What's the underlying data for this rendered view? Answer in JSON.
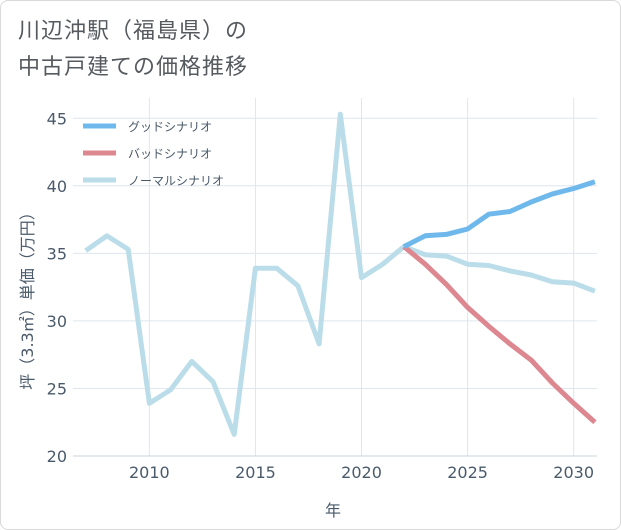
{
  "title_lines": [
    "川辺沖駅（福島県）の",
    "中古戸建ての価格推移"
  ],
  "chart_data": {
    "type": "line",
    "title": "川辺沖駅（福島県）の中古戸建ての価格推移",
    "xlabel": "年",
    "ylabel": "坪（3.3㎡）単価（万円）",
    "xlim": [
      2006.4,
      2031.1
    ],
    "ylim": [
      20,
      46.5
    ],
    "xticks": [
      2010,
      2015,
      2020,
      2025,
      2030
    ],
    "yticks": [
      20,
      25,
      30,
      35,
      40,
      45
    ],
    "grid": true,
    "legend_position": "top-left",
    "series": [
      {
        "name": "グッドシナリオ",
        "color": "#6fb8ec",
        "x": [
          2022,
          2023,
          2024,
          2025,
          2026,
          2027,
          2028,
          2029,
          2030,
          2031
        ],
        "values": [
          35.5,
          36.3,
          36.4,
          36.8,
          37.9,
          38.1,
          38.8,
          39.4,
          39.8,
          40.3
        ]
      },
      {
        "name": "バッドシナリオ",
        "color": "#dd8790",
        "x": [
          2022,
          2023,
          2024,
          2025,
          2026,
          2027,
          2028,
          2029,
          2030,
          2031
        ],
        "values": [
          35.5,
          34.2,
          32.7,
          31.0,
          29.6,
          28.3,
          27.1,
          25.4,
          23.9,
          22.5
        ]
      },
      {
        "name": "ノーマルシナリオ",
        "color": "#badde9",
        "x": [
          2007,
          2008,
          2009,
          2010,
          2011,
          2012,
          2013,
          2014,
          2015,
          2016,
          2017,
          2018,
          2019,
          2020,
          2021,
          2022,
          2023,
          2024,
          2025,
          2026,
          2027,
          2028,
          2029,
          2030,
          2031
        ],
        "values": [
          35.2,
          36.3,
          35.3,
          23.9,
          24.9,
          27.0,
          25.5,
          21.6,
          33.9,
          33.9,
          32.6,
          28.3,
          45.3,
          33.2,
          34.2,
          35.5,
          34.9,
          34.8,
          34.2,
          34.1,
          33.7,
          33.4,
          32.9,
          32.8,
          32.2
        ]
      }
    ]
  }
}
